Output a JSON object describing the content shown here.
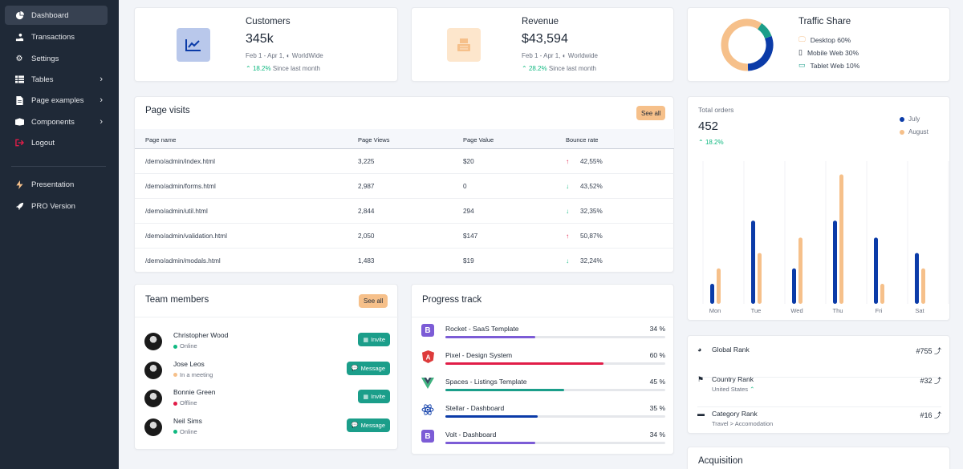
{
  "sidebar": {
    "items": [
      {
        "label": "Dashboard",
        "icon": "pie-chart-icon"
      },
      {
        "label": "Transactions",
        "icon": "hand-coin-icon"
      },
      {
        "label": "Settings",
        "icon": "gear-icon"
      },
      {
        "label": "Tables",
        "icon": "table-icon"
      },
      {
        "label": "Page examples",
        "icon": "file-icon"
      },
      {
        "label": "Components",
        "icon": "box-icon"
      },
      {
        "label": "Logout",
        "icon": "logout-icon"
      }
    ],
    "extra": [
      {
        "label": "Presentation",
        "icon": "bolt-icon"
      },
      {
        "label": "PRO Version",
        "icon": "rocket-icon"
      }
    ]
  },
  "customers": {
    "label": "Customers",
    "value": "345k",
    "period": "Feb 1 - Apr 1,",
    "region": "WorldWide",
    "change": "18.2%",
    "change_text": "Since last month"
  },
  "revenue": {
    "label": "Revenue",
    "value": "$43,594",
    "period": "Feb 1 - Apr 1,",
    "region": "Worldwide",
    "change": "28.2%",
    "change_text": "Since last month"
  },
  "traffic": {
    "title": "Traffic Share",
    "items": [
      {
        "label": "Desktop 60%",
        "value": 60,
        "color": "#f6c08a"
      },
      {
        "label": "Mobile Web 30%",
        "value": 30,
        "color": "#0b3ba8"
      },
      {
        "label": "Tablet Web 10%",
        "value": 10,
        "color": "#1b9e8a"
      }
    ]
  },
  "page_visits": {
    "title": "Page visits",
    "see_all": "See all",
    "columns": [
      "Page name",
      "Page Views",
      "Page Value",
      "Bounce rate"
    ],
    "rows": [
      {
        "name": "/demo/admin/index.html",
        "views": "3,225",
        "value": "$20",
        "bounce": "42,55%",
        "dir": "up"
      },
      {
        "name": "/demo/admin/forms.html",
        "views": "2,987",
        "value": "0",
        "bounce": "43,52%",
        "dir": "down"
      },
      {
        "name": "/demo/admin/util.html",
        "views": "2,844",
        "value": "294",
        "bounce": "32,35%",
        "dir": "down"
      },
      {
        "name": "/demo/admin/validation.html",
        "views": "2,050",
        "value": "$147",
        "bounce": "50,87%",
        "dir": "up"
      },
      {
        "name": "/demo/admin/modals.html",
        "views": "1,483",
        "value": "$19",
        "bounce": "32,24%",
        "dir": "down"
      }
    ]
  },
  "team": {
    "title": "Team members",
    "see_all": "See all",
    "members": [
      {
        "name": "Christopher Wood",
        "status": "Online",
        "status_color": "#10b981",
        "action": "Invite"
      },
      {
        "name": "Jose Leos",
        "status": "In a meeting",
        "status_color": "#f6c08a",
        "action": "Message"
      },
      {
        "name": "Bonnie Green",
        "status": "Offline",
        "status_color": "#e11d48",
        "action": "Invite"
      },
      {
        "name": "Neil Sims",
        "status": "Online",
        "status_color": "#10b981",
        "action": "Message"
      }
    ]
  },
  "progress": {
    "title": "Progress track",
    "items": [
      {
        "name": "Rocket - SaaS Template",
        "pct_label": "34 %",
        "pct": 34,
        "color": "#7c5cd6",
        "icon": "B",
        "icon_bg": "#7c5cd6"
      },
      {
        "name": "Pixel - Design System",
        "pct_label": "60 %",
        "pct": 60,
        "color": "#e11d48",
        "icon": "A",
        "icon_bg": "#dd3b3b"
      },
      {
        "name": "Spaces - Listings Template",
        "pct_label": "45 %",
        "pct": 45,
        "color": "#1b9e8a",
        "icon": "V",
        "icon_bg": "#3fb27f"
      },
      {
        "name": "Stellar - Dashboard",
        "pct_label": "35 %",
        "pct": 35,
        "color": "#0b3ba8",
        "icon": "R",
        "icon_bg": "#ffffff"
      },
      {
        "name": "Volt - Dashboard",
        "pct_label": "34 %",
        "pct": 34,
        "color": "#7c5cd6",
        "icon": "B",
        "icon_bg": "#7c5cd6"
      }
    ]
  },
  "orders": {
    "title": "Total orders",
    "value": "452",
    "change": "18.2%"
  },
  "chart_data": {
    "type": "bar",
    "categories": [
      "Mon",
      "Tue",
      "Wed",
      "Thu",
      "Fri",
      "Sat"
    ],
    "series": [
      {
        "name": "July",
        "color": "#0b3ba8",
        "values": [
          13,
          54,
          23,
          54,
          43,
          33
        ]
      },
      {
        "name": "August",
        "color": "#f6c08a",
        "values": [
          23,
          33,
          43,
          84,
          13,
          23
        ]
      }
    ],
    "ylim": [
      0,
      90
    ],
    "legend": "top-right"
  },
  "ranks": [
    {
      "label": "Global Rank",
      "sub": "",
      "value": "#755",
      "icon": "globe-icon"
    },
    {
      "label": "Country Rank",
      "sub": "United States",
      "value": "#32",
      "icon": "flag-icon"
    },
    {
      "label": "Category Rank",
      "sub": "Travel > Accomodation",
      "value": "#16",
      "icon": "folder-icon"
    }
  ],
  "acquisition": {
    "title": "Acquisition"
  }
}
